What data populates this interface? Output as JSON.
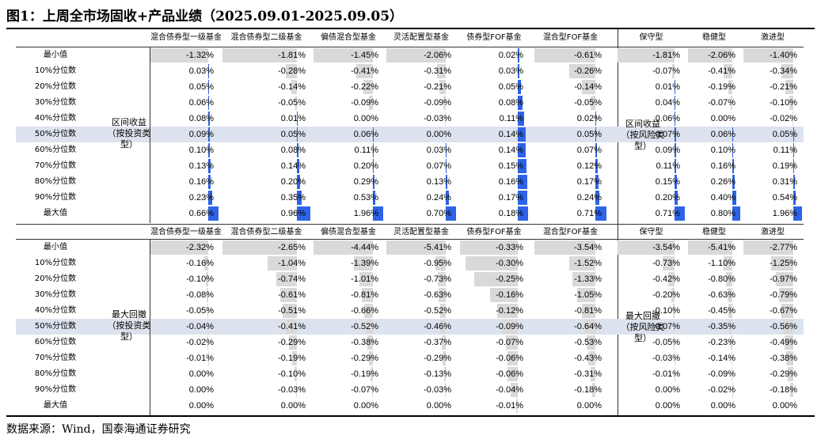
{
  "title": "图1：上周全市场固收+产品业绩（2025.09.01-2025.09.05）",
  "source": "数据来源：Wind，国泰海通证券研究",
  "colors": {
    "positive": "#2e63e8",
    "negative": "#d9d9d9",
    "highlight": "#dce3ee"
  },
  "row_labels": [
    "最小值",
    "10%分位数",
    "20%分位数",
    "30%分位数",
    "40%分位数",
    "50%分位数",
    "60%分位数",
    "70%分位数",
    "80%分位数",
    "90%分位数",
    "最大值"
  ],
  "section1": {
    "group_left": "区间收益（按投资类型）",
    "group_right": "区间收益（按风险类型）",
    "headers_left": [
      "混合债券型一级基金",
      "混合债券型二级基金",
      "偏债混合型基金",
      "灵活配置型基金",
      "债券型FOF基金",
      "混合型FOF基金"
    ],
    "headers_right": [
      "保守型",
      "稳健型",
      "激进型"
    ],
    "columns": [
      {
        "values": [
          -1.32,
          0.03,
          0.05,
          0.06,
          0.08,
          0.09,
          0.1,
          0.13,
          0.16,
          0.23,
          0.66
        ],
        "labels": [
          "-1.32%",
          "0.03%",
          "0.05%",
          "0.06%",
          "0.08%",
          "0.09%",
          "0.10%",
          "0.13%",
          "0.16%",
          "0.23%",
          "0.66%"
        ]
      },
      {
        "values": [
          -1.81,
          -0.28,
          -0.14,
          -0.05,
          0.01,
          0.05,
          0.08,
          0.14,
          0.2,
          0.35,
          0.96
        ],
        "labels": [
          "-1.81%",
          "-0.28%",
          "-0.14%",
          "-0.05%",
          "0.01%",
          "0.05%",
          "0.08%",
          "0.14%",
          "0.20%",
          "0.35%",
          "0.96%"
        ]
      },
      {
        "values": [
          -1.45,
          -0.41,
          -0.22,
          -0.09,
          0.0,
          0.06,
          0.11,
          0.2,
          0.29,
          0.53,
          1.96
        ],
        "labels": [
          "-1.45%",
          "-0.41%",
          "-0.22%",
          "-0.09%",
          "0.00%",
          "0.06%",
          "0.11%",
          "0.20%",
          "0.29%",
          "0.53%",
          "1.96%"
        ]
      },
      {
        "values": [
          -2.06,
          -0.31,
          -0.21,
          -0.09,
          -0.03,
          0.0,
          0.03,
          0.07,
          0.13,
          0.24,
          0.7
        ],
        "labels": [
          "-2.06%",
          "-0.31%",
          "-0.21%",
          "-0.09%",
          "-0.03%",
          "0.00%",
          "0.03%",
          "0.07%",
          "0.13%",
          "0.24%",
          "0.70%"
        ]
      },
      {
        "values": [
          0.02,
          0.03,
          0.05,
          0.08,
          0.11,
          0.14,
          0.14,
          0.15,
          0.16,
          0.17,
          0.18
        ],
        "labels": [
          "0.02%",
          "0.03%",
          "0.05%",
          "0.08%",
          "0.11%",
          "0.14%",
          "0.14%",
          "0.15%",
          "0.16%",
          "0.17%",
          "0.18%"
        ]
      },
      {
        "values": [
          -0.61,
          -0.26,
          -0.14,
          -0.05,
          0.02,
          0.05,
          0.07,
          0.12,
          0.17,
          0.24,
          0.71
        ],
        "labels": [
          "-0.61%",
          "-0.26%",
          "-0.14%",
          "-0.05%",
          "0.02%",
          "0.05%",
          "0.07%",
          "0.12%",
          "0.17%",
          "0.24%",
          "0.71%"
        ]
      },
      {
        "values": [
          -1.81,
          -0.07,
          0.01,
          0.04,
          0.06,
          0.07,
          0.09,
          0.11,
          0.15,
          0.2,
          0.71
        ],
        "labels": [
          "-1.81%",
          "-0.07%",
          "0.01%",
          "0.04%",
          "0.06%",
          "0.07%",
          "0.09%",
          "0.11%",
          "0.15%",
          "0.20%",
          "0.71%"
        ]
      },
      {
        "values": [
          -2.06,
          -0.41,
          -0.19,
          -0.07,
          0.0,
          0.06,
          0.1,
          0.16,
          0.26,
          0.4,
          0.8
        ],
        "labels": [
          "-2.06%",
          "-0.41%",
          "-0.19%",
          "-0.07%",
          "0.00%",
          "0.06%",
          "0.10%",
          "0.16%",
          "0.26%",
          "0.40%",
          "0.80%"
        ]
      },
      {
        "values": [
          -1.4,
          -0.34,
          -0.21,
          -0.1,
          -0.02,
          0.05,
          0.11,
          0.19,
          0.31,
          0.54,
          1.96
        ],
        "labels": [
          "-1.40%",
          "-0.34%",
          "-0.21%",
          "-0.10%",
          "-0.02%",
          "0.05%",
          "0.11%",
          "0.19%",
          "0.31%",
          "0.54%",
          "1.96%"
        ]
      }
    ]
  },
  "section2": {
    "group_left": "最大回撤（按投资类型）",
    "group_right": "最大回撤（按风险类型）",
    "headers_left": [
      "混合债券型一级基金",
      "混合债券型二级基金",
      "偏债混合型基金",
      "灵活配置型基金",
      "债券型FOF基金",
      "混合型FOF基金"
    ],
    "headers_right": [
      "保守型",
      "稳健型",
      "激进型"
    ],
    "columns": [
      {
        "values": [
          -2.32,
          -0.16,
          -0.1,
          -0.08,
          -0.05,
          -0.04,
          -0.02,
          -0.01,
          0.0,
          0.0,
          0.0
        ],
        "labels": [
          "-2.32%",
          "-0.16%",
          "-0.10%",
          "-0.08%",
          "-0.05%",
          "-0.04%",
          "-0.02%",
          "-0.01%",
          "0.00%",
          "0.00%",
          "0.00%"
        ]
      },
      {
        "values": [
          -2.65,
          -1.04,
          -0.74,
          -0.61,
          -0.51,
          -0.41,
          -0.29,
          -0.19,
          -0.1,
          -0.03,
          0.0
        ],
        "labels": [
          "-2.65%",
          "-1.04%",
          "-0.74%",
          "-0.61%",
          "-0.51%",
          "-0.41%",
          "-0.29%",
          "-0.19%",
          "-0.10%",
          "-0.03%",
          "0.00%"
        ]
      },
      {
        "values": [
          -4.44,
          -1.39,
          -1.01,
          -0.81,
          -0.66,
          -0.52,
          -0.38,
          -0.29,
          -0.19,
          -0.07,
          0.0
        ],
        "labels": [
          "-4.44%",
          "-1.39%",
          "-1.01%",
          "-0.81%",
          "-0.66%",
          "-0.52%",
          "-0.38%",
          "-0.29%",
          "-0.19%",
          "-0.07%",
          "0.00%"
        ]
      },
      {
        "values": [
          -5.41,
          -0.95,
          -0.73,
          -0.63,
          -0.52,
          -0.46,
          -0.37,
          -0.29,
          -0.13,
          -0.03,
          0.0
        ],
        "labels": [
          "-5.41%",
          "-0.95%",
          "-0.73%",
          "-0.63%",
          "-0.52%",
          "-0.46%",
          "-0.37%",
          "-0.29%",
          "-0.13%",
          "-0.03%",
          "0.00%"
        ]
      },
      {
        "values": [
          -0.33,
          -0.3,
          -0.25,
          -0.16,
          -0.12,
          -0.09,
          -0.07,
          -0.06,
          -0.06,
          -0.04,
          -0.01
        ],
        "labels": [
          "-0.33%",
          "-0.30%",
          "-0.25%",
          "-0.16%",
          "-0.12%",
          "-0.09%",
          "-0.07%",
          "-0.06%",
          "-0.06%",
          "-0.04%",
          "-0.01%"
        ]
      },
      {
        "values": [
          -3.54,
          -1.52,
          -1.33,
          -1.05,
          -0.81,
          -0.64,
          -0.53,
          -0.43,
          -0.31,
          -0.18,
          0.0
        ],
        "labels": [
          "-3.54%",
          "-1.52%",
          "-1.33%",
          "-1.05%",
          "-0.81%",
          "-0.64%",
          "-0.53%",
          "-0.43%",
          "-0.31%",
          "-0.18%",
          "0.00%"
        ]
      },
      {
        "values": [
          -3.54,
          -0.73,
          -0.42,
          -0.2,
          -0.1,
          -0.07,
          -0.05,
          -0.03,
          -0.01,
          0.0,
          0.0
        ],
        "labels": [
          "-3.54%",
          "-0.73%",
          "-0.42%",
          "-0.20%",
          "-0.10%",
          "-0.07%",
          "-0.05%",
          "-0.03%",
          "-0.01%",
          "0.00%",
          "0.00%"
        ]
      },
      {
        "values": [
          -5.41,
          -1.1,
          -0.8,
          -0.63,
          -0.45,
          -0.35,
          -0.23,
          -0.14,
          -0.09,
          -0.02,
          0.0
        ],
        "labels": [
          "-5.41%",
          "-1.10%",
          "-0.80%",
          "-0.63%",
          "-0.45%",
          "-0.35%",
          "-0.23%",
          "-0.14%",
          "-0.09%",
          "-0.02%",
          "0.00%"
        ]
      },
      {
        "values": [
          -2.77,
          -1.25,
          -0.97,
          -0.79,
          -0.67,
          -0.56,
          -0.49,
          -0.38,
          -0.29,
          -0.18,
          0.0
        ],
        "labels": [
          "-2.77%",
          "-1.25%",
          "-0.97%",
          "-0.79%",
          "-0.67%",
          "-0.56%",
          "-0.49%",
          "-0.38%",
          "-0.29%",
          "-0.18%",
          "0.00%"
        ]
      }
    ]
  }
}
